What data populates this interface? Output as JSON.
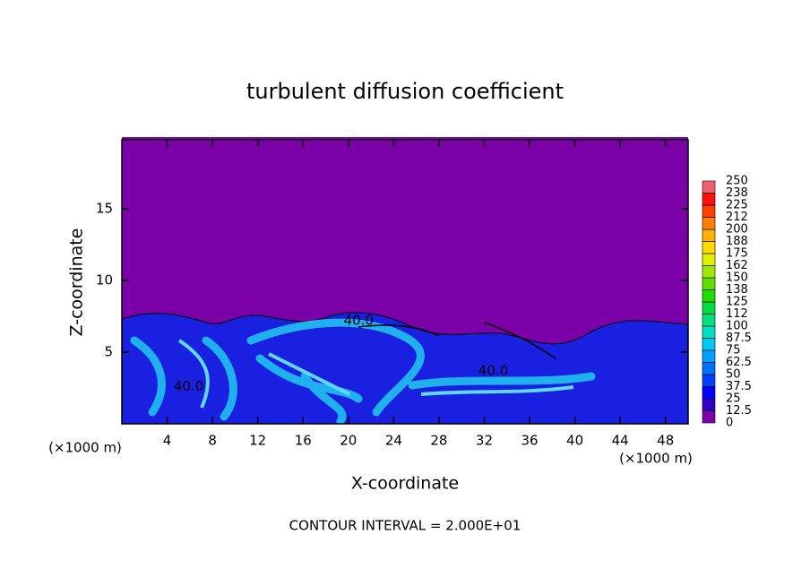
{
  "chart_data": {
    "type": "contour",
    "title": "turbulent diffusion coefficient",
    "xlabel": "X-coordinate",
    "ylabel": "Z-coordinate",
    "x_unit": "(×1000 m)",
    "y_unit": "(×1000 m)",
    "xlim": [
      0,
      50
    ],
    "ylim": [
      0,
      20
    ],
    "xticks": [
      4,
      8,
      12,
      16,
      20,
      24,
      28,
      32,
      36,
      40,
      44,
      48
    ],
    "yticks": [
      5,
      10,
      15
    ],
    "footer": "CONTOUR INTERVAL = 2.000E+01",
    "contour_labels": [
      {
        "text": "40.0",
        "x": 20.9,
        "y": 7.2
      },
      {
        "text": "40.0",
        "x": 32.8,
        "y": 3.7
      },
      {
        "text": "40.0",
        "x": 5.9,
        "y": 2.6
      }
    ],
    "colorbar": {
      "ticks": [
        0,
        12.5,
        25,
        37.5,
        50,
        62.5,
        75,
        87.5,
        100,
        112,
        125,
        138,
        150,
        162,
        175,
        188,
        200,
        212,
        225,
        238,
        250
      ],
      "colors": [
        "#7b00a8",
        "#3200c8",
        "#0000ff",
        "#0040ff",
        "#0070ff",
        "#00a0ff",
        "#00c8f0",
        "#00e0c0",
        "#00e080",
        "#00dc40",
        "#20dc00",
        "#60e000",
        "#a0e800",
        "#e0f000",
        "#ffd800",
        "#ffb000",
        "#ff8000",
        "#ff4000",
        "#ff1010",
        "#f06070"
      ]
    }
  }
}
